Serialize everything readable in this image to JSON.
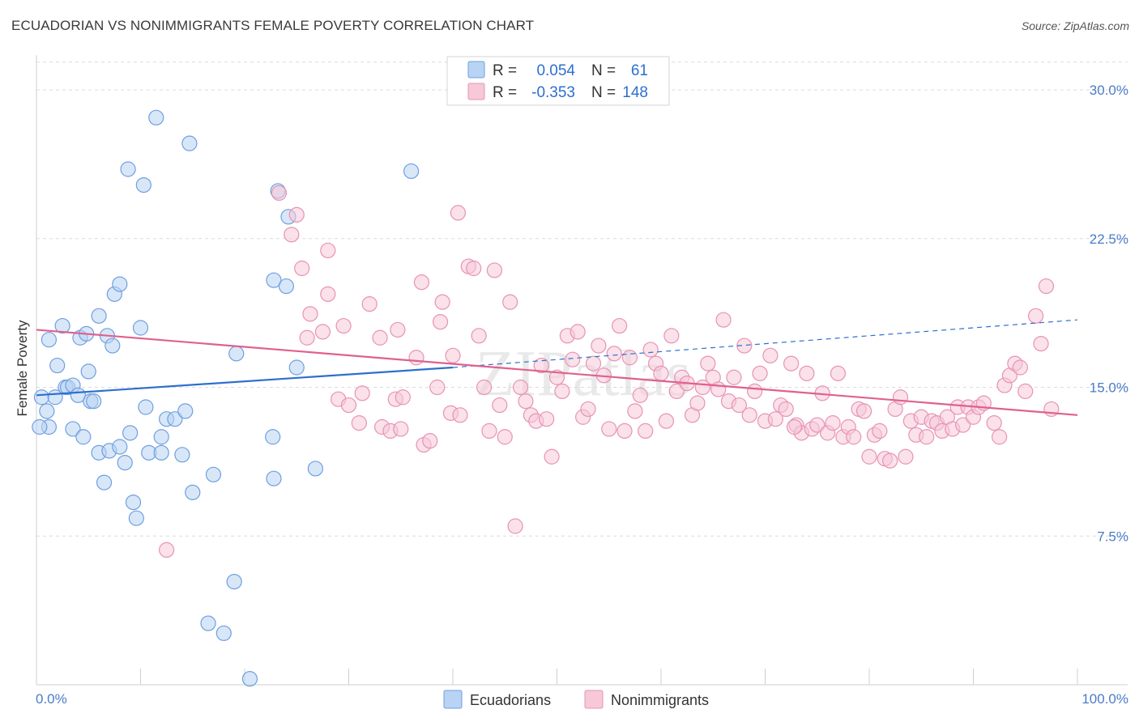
{
  "title": "ECUADORIAN VS NONIMMIGRANTS FEMALE POVERTY CORRELATION CHART",
  "source": "Source: ZipAtlas.com",
  "watermark": "ZIPatlas",
  "chart_data": {
    "type": "scatter",
    "title": "ECUADORIAN VS NONIMMIGRANTS FEMALE POVERTY CORRELATION CHART",
    "xlabel": "",
    "ylabel": "Female Poverty",
    "xlim": [
      0,
      100
    ],
    "ylim": [
      0,
      32
    ],
    "x_tick_labels": [
      "0.0%",
      "100.0%"
    ],
    "y_ticks": [
      7.5,
      15.0,
      22.5,
      30.0
    ],
    "y_tick_labels": [
      "7.5%",
      "15.0%",
      "22.5%",
      "30.0%"
    ],
    "grid": true,
    "legend": {
      "position": "top-center",
      "rows": [
        {
          "r_label": "R =",
          "r_value": "0.054",
          "n_label": "N =",
          "n_value": "61"
        },
        {
          "r_label": "R =",
          "r_value": "-0.353",
          "n_label": "N =",
          "n_value": "148"
        }
      ]
    },
    "series": [
      {
        "name": "Ecuadorians",
        "color": "#6f9fe0",
        "fill": "#b8d3f3",
        "trend": {
          "x0": 0,
          "y0": 14.6,
          "x1": 40,
          "y1": 16.0,
          "dash_to_x": 100,
          "dash_to_y": 18.4,
          "color": "#2d6fcf"
        },
        "points": [
          [
            0.5,
            14.5
          ],
          [
            1,
            13.8
          ],
          [
            1.2,
            13
          ],
          [
            1.8,
            14.5
          ],
          [
            2,
            16.1
          ],
          [
            2.5,
            18.1
          ],
          [
            2.8,
            15
          ],
          [
            3,
            15
          ],
          [
            3.5,
            15.1
          ],
          [
            4,
            14.6
          ],
          [
            3.5,
            12.9
          ],
          [
            4.2,
            17.5
          ],
          [
            4.5,
            12.5
          ],
          [
            4.8,
            17.7
          ],
          [
            5,
            15.8
          ],
          [
            5.2,
            14.3
          ],
          [
            5.5,
            14.3
          ],
          [
            6,
            11.7
          ],
          [
            6,
            18.6
          ],
          [
            6.5,
            10.2
          ],
          [
            6.8,
            17.6
          ],
          [
            7,
            11.8
          ],
          [
            7.3,
            17.1
          ],
          [
            7.5,
            19.7
          ],
          [
            8,
            12
          ],
          [
            8,
            20.2
          ],
          [
            8.5,
            11.2
          ],
          [
            8.8,
            26
          ],
          [
            9,
            12.7
          ],
          [
            9.3,
            9.2
          ],
          [
            9.6,
            8.4
          ],
          [
            10,
            18
          ],
          [
            10.3,
            25.2
          ],
          [
            10.5,
            14
          ],
          [
            10.8,
            11.7
          ],
          [
            11.5,
            28.6
          ],
          [
            12,
            11.7
          ],
          [
            12,
            12.5
          ],
          [
            12.5,
            13.4
          ],
          [
            13.3,
            13.4
          ],
          [
            14,
            11.6
          ],
          [
            14.3,
            13.8
          ],
          [
            14.7,
            27.3
          ],
          [
            15,
            9.7
          ],
          [
            17,
            10.6
          ],
          [
            18,
            2.6
          ],
          [
            19,
            5.2
          ],
          [
            19.2,
            16.7
          ],
          [
            20.5,
            0.3
          ],
          [
            22.7,
            12.5
          ],
          [
            22.8,
            20.4
          ],
          [
            22.8,
            10.4
          ],
          [
            23.2,
            24.9
          ],
          [
            24,
            20.1
          ],
          [
            24.2,
            23.6
          ],
          [
            25,
            16
          ],
          [
            26.8,
            10.9
          ],
          [
            36,
            25.9
          ],
          [
            0.3,
            13
          ],
          [
            1.2,
            17.4
          ],
          [
            16.5,
            3.1
          ]
        ]
      },
      {
        "name": "Nonimmigrants",
        "color": "#e893b2",
        "fill": "#f6c8d8",
        "trend": {
          "x0": 0,
          "y0": 17.9,
          "x1": 100,
          "y1": 13.6,
          "color": "#e0608f"
        },
        "points": [
          [
            12.5,
            6.8
          ],
          [
            23.3,
            24.8
          ],
          [
            24.5,
            22.7
          ],
          [
            25,
            23.7
          ],
          [
            25.5,
            21
          ],
          [
            26,
            17.5
          ],
          [
            26.3,
            18.7
          ],
          [
            27.5,
            17.8
          ],
          [
            28,
            21.9
          ],
          [
            28,
            19.7
          ],
          [
            29,
            14.4
          ],
          [
            29.5,
            18.1
          ],
          [
            30,
            14.1
          ],
          [
            31,
            13.2
          ],
          [
            31.3,
            14.7
          ],
          [
            32,
            19.2
          ],
          [
            33,
            17.5
          ],
          [
            33.2,
            13
          ],
          [
            34,
            12.8
          ],
          [
            34.5,
            14.4
          ],
          [
            34.7,
            17.9
          ],
          [
            35,
            12.9
          ],
          [
            35.2,
            14.5
          ],
          [
            36.5,
            16.5
          ],
          [
            37,
            20.3
          ],
          [
            37.2,
            12.1
          ],
          [
            37.8,
            12.3
          ],
          [
            38.5,
            15
          ],
          [
            38.8,
            18.3
          ],
          [
            39,
            19.3
          ],
          [
            39.8,
            13.7
          ],
          [
            40,
            16.6
          ],
          [
            40.5,
            23.8
          ],
          [
            41.5,
            21.1
          ],
          [
            42,
            21
          ],
          [
            42.5,
            17.6
          ],
          [
            43,
            15
          ],
          [
            43.5,
            12.8
          ],
          [
            44,
            20.9
          ],
          [
            44.5,
            14.1
          ],
          [
            45,
            12.5
          ],
          [
            45.5,
            19.3
          ],
          [
            46,
            8
          ],
          [
            46.5,
            15
          ],
          [
            47,
            14.3
          ],
          [
            47.5,
            13.6
          ],
          [
            48,
            13.3
          ],
          [
            48.5,
            16.1
          ],
          [
            49,
            13.4
          ],
          [
            49.5,
            11.5
          ],
          [
            50,
            15.5
          ],
          [
            50.5,
            14.8
          ],
          [
            51,
            17.6
          ],
          [
            51.5,
            16.4
          ],
          [
            52,
            17.8
          ],
          [
            52.5,
            13.5
          ],
          [
            53,
            13.9
          ],
          [
            53.5,
            16.2
          ],
          [
            54,
            17.1
          ],
          [
            54.5,
            15.6
          ],
          [
            55,
            12.9
          ],
          [
            55.5,
            16.7
          ],
          [
            56,
            18.1
          ],
          [
            56.5,
            12.8
          ],
          [
            57,
            16.5
          ],
          [
            57.5,
            13.8
          ],
          [
            58,
            14.6
          ],
          [
            58.5,
            12.8
          ],
          [
            59,
            16.9
          ],
          [
            59.5,
            16.2
          ],
          [
            60,
            15.7
          ],
          [
            60.5,
            13.3
          ],
          [
            61,
            17.6
          ],
          [
            61.5,
            14.8
          ],
          [
            62,
            15.5
          ],
          [
            62.5,
            15.2
          ],
          [
            63,
            13.6
          ],
          [
            63.5,
            14.2
          ],
          [
            64,
            15
          ],
          [
            64.5,
            16.2
          ],
          [
            65,
            15.5
          ],
          [
            65.5,
            14.9
          ],
          [
            66,
            18.4
          ],
          [
            66.5,
            14.3
          ],
          [
            67,
            15.5
          ],
          [
            67.5,
            14.1
          ],
          [
            68,
            17.1
          ],
          [
            68.5,
            13.6
          ],
          [
            69,
            14.8
          ],
          [
            69.5,
            15.7
          ],
          [
            70,
            13.3
          ],
          [
            70.5,
            16.6
          ],
          [
            71,
            13.4
          ],
          [
            71.5,
            14.1
          ],
          [
            72,
            13.9
          ],
          [
            72.5,
            16.2
          ],
          [
            73,
            13.1
          ],
          [
            73.5,
            12.7
          ],
          [
            74,
            15.7
          ],
          [
            74.5,
            12.9
          ],
          [
            75,
            13.1
          ],
          [
            75.5,
            14.7
          ],
          [
            76,
            12.7
          ],
          [
            76.5,
            13.2
          ],
          [
            77,
            15.7
          ],
          [
            77.5,
            12.5
          ],
          [
            78,
            13
          ],
          [
            78.5,
            12.5
          ],
          [
            79,
            13.9
          ],
          [
            79.5,
            13.8
          ],
          [
            80,
            11.5
          ],
          [
            80.5,
            12.6
          ],
          [
            81,
            12.8
          ],
          [
            81.5,
            11.4
          ],
          [
            82,
            11.3
          ],
          [
            82.5,
            13.9
          ],
          [
            83,
            14.5
          ],
          [
            83.5,
            11.5
          ],
          [
            84,
            13.3
          ],
          [
            84.5,
            12.6
          ],
          [
            85,
            13.5
          ],
          [
            85.5,
            12.5
          ],
          [
            86,
            13.3
          ],
          [
            86.5,
            13.2
          ],
          [
            87,
            12.8
          ],
          [
            87.5,
            13.5
          ],
          [
            88,
            12.9
          ],
          [
            88.5,
            14
          ],
          [
            89,
            13.1
          ],
          [
            89.5,
            14
          ],
          [
            90,
            13.5
          ],
          [
            90.5,
            14
          ],
          [
            91,
            14.2
          ],
          [
            92,
            13.2
          ],
          [
            92.5,
            12.5
          ],
          [
            93,
            15.1
          ],
          [
            93.5,
            15.6
          ],
          [
            94,
            16.2
          ],
          [
            94.5,
            16
          ],
          [
            95,
            14.8
          ],
          [
            96,
            18.6
          ],
          [
            96.5,
            17.2
          ],
          [
            97,
            20.1
          ],
          [
            97.5,
            13.9
          ],
          [
            72.8,
            13
          ],
          [
            40.7,
            13.6
          ]
        ]
      }
    ]
  },
  "bottom_legend": [
    {
      "label": "Ecuadorians"
    },
    {
      "label": "Nonimmigrants"
    }
  ]
}
